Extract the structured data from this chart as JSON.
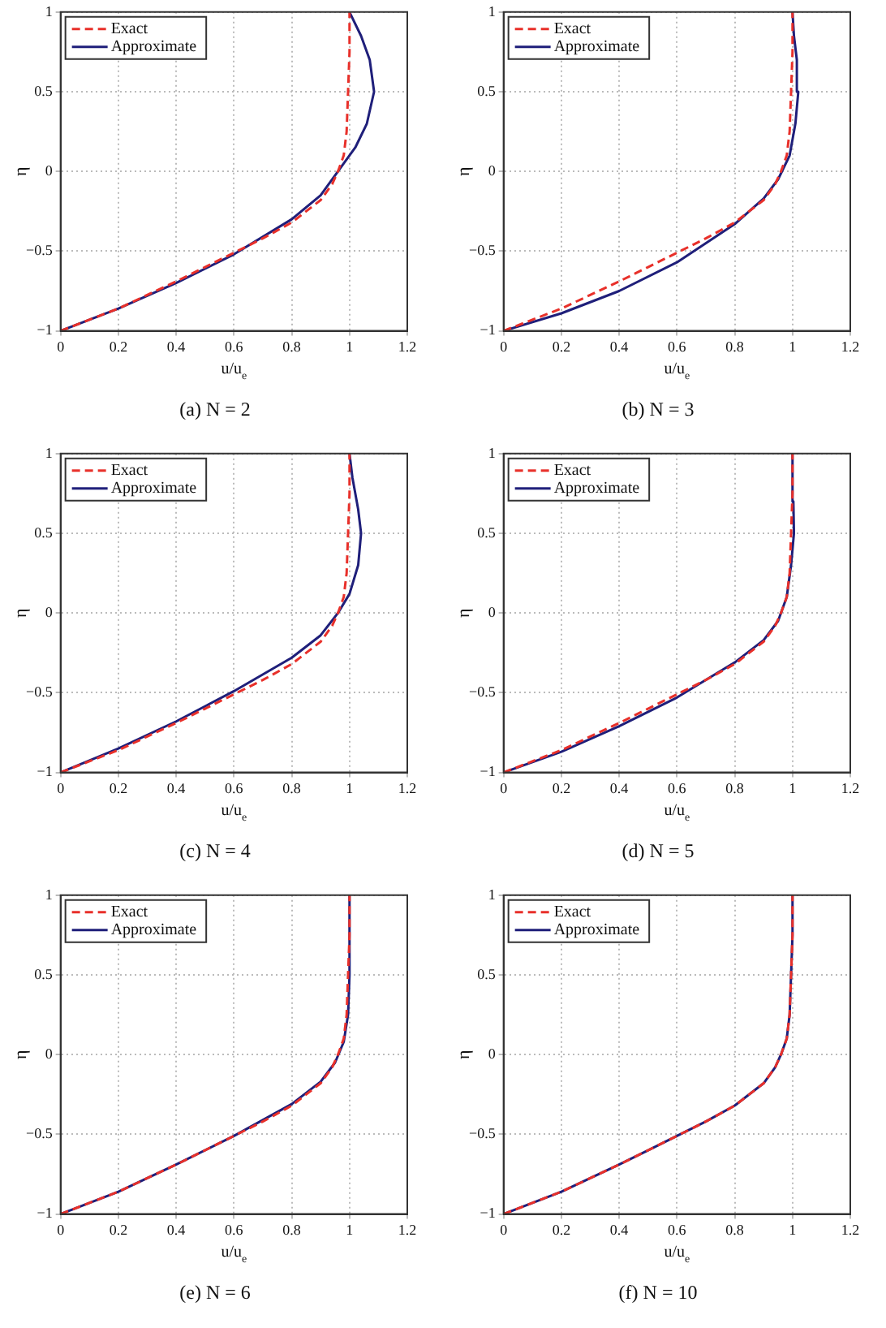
{
  "chart_data": [
    {
      "type": "line",
      "title": "(a) N = 2",
      "xlabel": "u/u$_{e}$",
      "ylabel": "η",
      "xlim": [
        0,
        1.2
      ],
      "xticks": [
        0,
        0.2,
        0.4,
        0.6,
        0.8,
        1,
        1.2
      ],
      "ylim": [
        -1,
        1
      ],
      "yticks": [
        -1,
        -0.5,
        0,
        0.5,
        1
      ],
      "grid": true,
      "legend": "top left",
      "marker": "none",
      "series": [
        {
          "name": "Exact",
          "color": "#e8302a",
          "line_style": "dashed",
          "x": [
            0,
            0.2,
            0.4,
            0.5,
            0.6,
            0.7,
            0.8,
            0.9,
            0.94,
            0.96,
            0.98,
            0.99,
            0.995,
            1,
            1
          ],
          "values": [
            -1,
            -0.86,
            -0.69,
            -0.6,
            -0.51,
            -0.42,
            -0.32,
            -0.18,
            -0.08,
            0,
            0.1,
            0.25,
            0.5,
            0.75,
            1
          ]
        },
        {
          "name": "Approximate",
          "color": "#1f1f7a",
          "line_style": "solid",
          "x": [
            0,
            0.2,
            0.4,
            0.6,
            0.8,
            0.9,
            0.96,
            1.02,
            1.06,
            1.085,
            1.07,
            1.04,
            1
          ],
          "values": [
            -1,
            -0.86,
            -0.7,
            -0.52,
            -0.3,
            -0.15,
            0,
            0.15,
            0.3,
            0.5,
            0.7,
            0.85,
            1
          ]
        }
      ]
    },
    {
      "type": "line",
      "title": "(b) N = 3",
      "xlabel": "u/u$_{e}$",
      "ylabel": "η",
      "xlim": [
        0,
        1.2
      ],
      "xticks": [
        0,
        0.2,
        0.4,
        0.6,
        0.8,
        1,
        1.2
      ],
      "ylim": [
        -1,
        1
      ],
      "yticks": [
        -1,
        -0.5,
        0,
        0.5,
        1
      ],
      "grid": true,
      "legend": "top left",
      "marker": "none",
      "series": [
        {
          "name": "Exact",
          "color": "#e8302a",
          "line_style": "dashed",
          "x": [
            0,
            0.2,
            0.4,
            0.5,
            0.6,
            0.7,
            0.8,
            0.9,
            0.94,
            0.96,
            0.98,
            0.99,
            0.995,
            1,
            1
          ],
          "values": [
            -1,
            -0.86,
            -0.69,
            -0.6,
            -0.51,
            -0.42,
            -0.32,
            -0.18,
            -0.08,
            0,
            0.1,
            0.25,
            0.5,
            0.75,
            1
          ]
        },
        {
          "name": "Approximate",
          "color": "#1f1f7a",
          "line_style": "solid",
          "x": [
            0,
            0.2,
            0.4,
            0.6,
            0.8,
            0.9,
            0.95,
            0.99,
            1.01,
            1.02,
            1.015,
            1.005,
            1
          ],
          "values": [
            -1,
            -0.89,
            -0.75,
            -0.57,
            -0.33,
            -0.17,
            -0.05,
            0.1,
            0.3,
            0.5,
            0.7,
            0.85,
            1
          ]
        }
      ]
    },
    {
      "type": "line",
      "title": "(c) N = 4",
      "xlabel": "u/u$_{e}$",
      "ylabel": "η",
      "xlim": [
        0,
        1.2
      ],
      "xticks": [
        0,
        0.2,
        0.4,
        0.6,
        0.8,
        1,
        1.2
      ],
      "ylim": [
        -1,
        1
      ],
      "yticks": [
        -1,
        -0.5,
        0,
        0.5,
        1
      ],
      "grid": true,
      "legend": "top left",
      "marker": "none",
      "series": [
        {
          "name": "Exact",
          "color": "#e8302a",
          "line_style": "dashed",
          "x": [
            0,
            0.2,
            0.4,
            0.5,
            0.6,
            0.7,
            0.8,
            0.9,
            0.94,
            0.96,
            0.98,
            0.99,
            0.995,
            1,
            1
          ],
          "values": [
            -1,
            -0.86,
            -0.69,
            -0.6,
            -0.51,
            -0.42,
            -0.32,
            -0.18,
            -0.08,
            0,
            0.1,
            0.25,
            0.5,
            0.75,
            1
          ]
        },
        {
          "name": "Approximate",
          "color": "#1f1f7a",
          "line_style": "solid",
          "x": [
            0,
            0.2,
            0.4,
            0.6,
            0.8,
            0.9,
            0.96,
            1,
            1.03,
            1.04,
            1.03,
            1.01,
            1
          ],
          "values": [
            -1,
            -0.85,
            -0.68,
            -0.49,
            -0.28,
            -0.14,
            0,
            0.12,
            0.3,
            0.5,
            0.65,
            0.85,
            1
          ]
        }
      ]
    },
    {
      "type": "line",
      "title": "(d) N = 5",
      "xlabel": "u/u$_{e}$",
      "ylabel": "η",
      "xlim": [
        0,
        1.2
      ],
      "xticks": [
        0,
        0.2,
        0.4,
        0.6,
        0.8,
        1,
        1.2
      ],
      "ylim": [
        -1,
        1
      ],
      "yticks": [
        -1,
        -0.5,
        0,
        0.5,
        1
      ],
      "grid": true,
      "legend": "top left",
      "marker": "none",
      "series": [
        {
          "name": "Exact",
          "color": "#e8302a",
          "line_style": "dashed",
          "x": [
            0,
            0.2,
            0.4,
            0.5,
            0.6,
            0.7,
            0.8,
            0.9,
            0.94,
            0.96,
            0.98,
            0.99,
            0.995,
            1,
            1
          ],
          "values": [
            -1,
            -0.86,
            -0.69,
            -0.6,
            -0.51,
            -0.42,
            -0.32,
            -0.18,
            -0.08,
            0,
            0.1,
            0.25,
            0.5,
            0.75,
            1
          ]
        },
        {
          "name": "Approximate",
          "color": "#1f1f7a",
          "line_style": "solid",
          "x": [
            0,
            0.2,
            0.4,
            0.6,
            0.8,
            0.9,
            0.95,
            0.98,
            0.995,
            1.005,
            1.003,
            1
          ],
          "values": [
            -1,
            -0.87,
            -0.71,
            -0.53,
            -0.31,
            -0.17,
            -0.05,
            0.1,
            0.3,
            0.5,
            0.7,
            1
          ]
        }
      ]
    },
    {
      "type": "line",
      "title": "(e) N = 6",
      "xlabel": "u/u$_{e}$",
      "ylabel": "η",
      "xlim": [
        0,
        1.2
      ],
      "xticks": [
        0,
        0.2,
        0.4,
        0.6,
        0.8,
        1,
        1.2
      ],
      "ylim": [
        -1,
        1
      ],
      "yticks": [
        -1,
        -0.5,
        0,
        0.5,
        1
      ],
      "grid": true,
      "legend": "top left",
      "marker": "none",
      "series": [
        {
          "name": "Exact",
          "color": "#e8302a",
          "line_style": "dashed",
          "x": [
            0,
            0.2,
            0.4,
            0.5,
            0.6,
            0.7,
            0.8,
            0.9,
            0.94,
            0.96,
            0.98,
            0.99,
            0.995,
            1,
            1
          ],
          "values": [
            -1,
            -0.86,
            -0.69,
            -0.6,
            -0.51,
            -0.42,
            -0.32,
            -0.18,
            -0.08,
            0,
            0.1,
            0.25,
            0.5,
            0.75,
            1
          ]
        },
        {
          "name": "Approximate",
          "color": "#1f1f7a",
          "line_style": "solid",
          "x": [
            0,
            0.2,
            0.4,
            0.6,
            0.8,
            0.9,
            0.95,
            0.98,
            0.995,
            1,
            1
          ],
          "values": [
            -1,
            -0.86,
            -0.69,
            -0.51,
            -0.31,
            -0.17,
            -0.05,
            0.08,
            0.25,
            0.5,
            1
          ]
        }
      ]
    },
    {
      "type": "line",
      "title": "(f) N = 10",
      "xlabel": "u/u$_{e}$",
      "ylabel": "η",
      "xlim": [
        0,
        1.2
      ],
      "xticks": [
        0,
        0.2,
        0.4,
        0.6,
        0.8,
        1,
        1.2
      ],
      "ylim": [
        -1,
        1
      ],
      "yticks": [
        -1,
        -0.5,
        0,
        0.5,
        1
      ],
      "grid": true,
      "legend": "top left",
      "marker": "none",
      "series": [
        {
          "name": "Exact",
          "color": "#e8302a",
          "line_style": "dashed",
          "x": [
            0,
            0.2,
            0.4,
            0.5,
            0.6,
            0.7,
            0.8,
            0.9,
            0.94,
            0.96,
            0.98,
            0.99,
            0.995,
            1,
            1
          ],
          "values": [
            -1,
            -0.86,
            -0.69,
            -0.6,
            -0.51,
            -0.42,
            -0.32,
            -0.18,
            -0.08,
            0,
            0.1,
            0.25,
            0.5,
            0.75,
            1
          ]
        },
        {
          "name": "Approximate",
          "color": "#1f1f7a",
          "line_style": "solid",
          "x": [
            0,
            0.2,
            0.4,
            0.5,
            0.6,
            0.7,
            0.8,
            0.9,
            0.94,
            0.96,
            0.98,
            0.99,
            0.995,
            1,
            1
          ],
          "values": [
            -1,
            -0.86,
            -0.69,
            -0.6,
            -0.51,
            -0.42,
            -0.32,
            -0.18,
            -0.08,
            0,
            0.1,
            0.25,
            0.5,
            0.75,
            1
          ]
        }
      ]
    }
  ]
}
